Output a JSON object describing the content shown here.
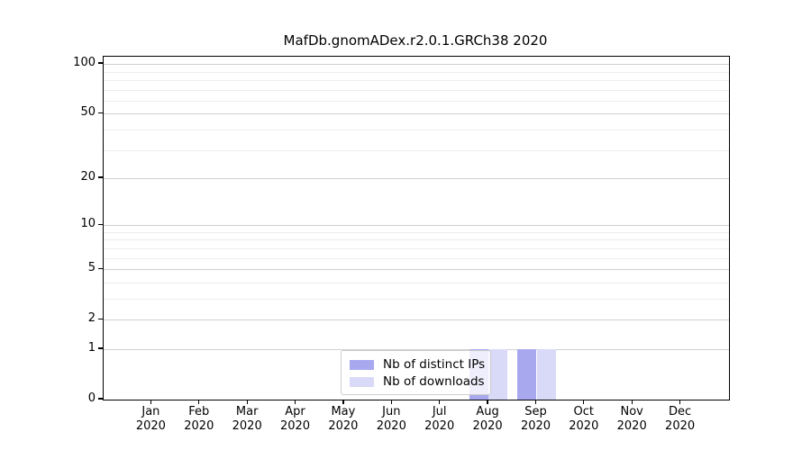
{
  "title": "MafDb.gnomADex.r2.0.1.GRCh38 2020",
  "legend": {
    "items": [
      {
        "label": "Nb of distinct IPs",
        "color": "#a8a8ef"
      },
      {
        "label": "Nb of downloads",
        "color": "#d9d9f8"
      }
    ]
  },
  "axes": {
    "y_major_ticks": [
      100,
      50,
      20,
      10,
      5,
      2,
      1,
      0
    ],
    "y_minor_ticks": [
      3,
      4,
      6,
      7,
      8,
      9,
      30,
      40,
      60,
      70,
      80,
      90
    ],
    "x_ticks": [
      {
        "month": "Jan",
        "year": "2020"
      },
      {
        "month": "Feb",
        "year": "2020"
      },
      {
        "month": "Mar",
        "year": "2020"
      },
      {
        "month": "Apr",
        "year": "2020"
      },
      {
        "month": "May",
        "year": "2020"
      },
      {
        "month": "Jun",
        "year": "2020"
      },
      {
        "month": "Jul",
        "year": "2020"
      },
      {
        "month": "Aug",
        "year": "2020"
      },
      {
        "month": "Sep",
        "year": "2020"
      },
      {
        "month": "Oct",
        "year": "2020"
      },
      {
        "month": "Nov",
        "year": "2020"
      },
      {
        "month": "Dec",
        "year": "2020"
      }
    ]
  },
  "colors": {
    "distinct_ips": "#a8a8ef",
    "downloads": "#d9d9f8",
    "grid_major": "#d0d0d0",
    "grid_minor": "#ededed",
    "spine": "#000000"
  },
  "chart_data": {
    "type": "bar",
    "title": "MafDb.gnomADex.r2.0.1.GRCh38 2020",
    "xlabel": "",
    "ylabel": "",
    "y_scale": "log10(1+y)",
    "ylim": [
      0,
      110
    ],
    "y_tick_values": [
      0,
      1,
      2,
      5,
      10,
      20,
      50,
      100
    ],
    "grid": true,
    "legend_position": "lower center",
    "categories": [
      "Jan 2020",
      "Feb 2020",
      "Mar 2020",
      "Apr 2020",
      "May 2020",
      "Jun 2020",
      "Jul 2020",
      "Aug 2020",
      "Sep 2020",
      "Oct 2020",
      "Nov 2020",
      "Dec 2020"
    ],
    "series": [
      {
        "name": "Nb of distinct IPs",
        "color": "#a8a8ef",
        "values": [
          0,
          0,
          0,
          0,
          0,
          0,
          0,
          1,
          1,
          0,
          0,
          0
        ]
      },
      {
        "name": "Nb of downloads",
        "color": "#d9d9f8",
        "values": [
          0,
          0,
          0,
          0,
          0,
          0,
          0,
          1,
          1,
          0,
          0,
          0
        ]
      }
    ]
  }
}
